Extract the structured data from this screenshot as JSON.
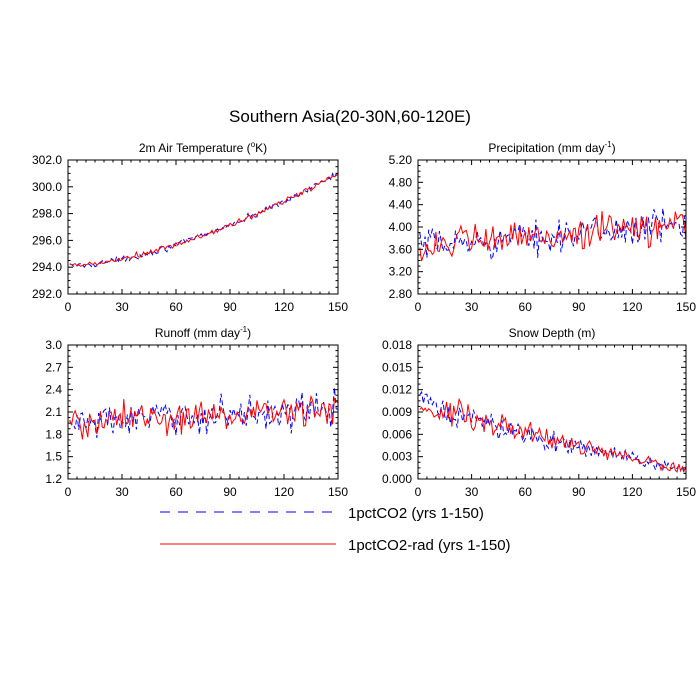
{
  "figure": {
    "title": "Southern Asia(20-30N,60-120E)"
  },
  "legend": {
    "position": "bottom-center",
    "entries": [
      {
        "label": "1pctCO2 (yrs 1-150)",
        "color": "#0000ff",
        "style": "dashed"
      },
      {
        "label": "1pctCO2-rad (yrs 1-150)",
        "color": "#ff0000",
        "style": "solid"
      }
    ]
  },
  "chart_data": [
    {
      "type": "line",
      "title": "2m Air Temperature (°K)",
      "title_parts": [
        "2m Air Temperature (",
        "o",
        "K)"
      ],
      "x_range": [
        0,
        150
      ],
      "x_ticks": [
        0,
        30,
        60,
        90,
        120,
        150
      ],
      "ylim": [
        292.0,
        302.0
      ],
      "y_ticks": [
        "292.0",
        "294.0",
        "296.0",
        "298.0",
        "300.0",
        "302.0"
      ],
      "grid": false,
      "series_model": {
        "kind": "trend",
        "start": 294.1,
        "end": 301.0,
        "curve": 1.6,
        "blue_amp": 0.35,
        "red_amp": 0.35
      }
    },
    {
      "type": "line",
      "title": "Precipitation (mm day-1)",
      "title_parts": [
        "Precipitation (mm day",
        "-1",
        ")"
      ],
      "x_range": [
        0,
        150
      ],
      "x_ticks": [
        0,
        30,
        60,
        90,
        120,
        150
      ],
      "ylim": [
        2.8,
        5.2
      ],
      "y_ticks": [
        "2.80",
        "3.20",
        "3.60",
        "4.00",
        "4.40",
        "4.80",
        "5.20"
      ],
      "grid": false,
      "series_model": {
        "kind": "trend",
        "start": 3.65,
        "end": 4.05,
        "curve": 1.0,
        "blue_amp": 0.42,
        "red_amp": 0.45
      }
    },
    {
      "type": "line",
      "title": "Runoff (mm day-1)",
      "title_parts": [
        "Runoff (mm day",
        "-1",
        ")"
      ],
      "x_range": [
        0,
        150
      ],
      "x_ticks": [
        0,
        30,
        60,
        90,
        120,
        150
      ],
      "ylim": [
        1.2,
        3.0
      ],
      "y_ticks": [
        "1.2",
        "1.5",
        "1.8",
        "2.1",
        "2.4",
        "2.7",
        "3.0"
      ],
      "grid": false,
      "series_model": {
        "kind": "trend",
        "start": 1.95,
        "end": 2.15,
        "curve": 1.0,
        "blue_amp": 0.33,
        "red_amp": 0.35
      }
    },
    {
      "type": "line",
      "title": "Snow Depth (m)",
      "title_parts": [
        "Snow Depth (m)",
        "",
        ""
      ],
      "x_range": [
        0,
        150
      ],
      "x_ticks": [
        0,
        30,
        60,
        90,
        120,
        150
      ],
      "ylim": [
        0.0,
        0.018
      ],
      "y_ticks": [
        "0.000",
        "0.003",
        "0.006",
        "0.009",
        "0.012",
        "0.015",
        "0.018"
      ],
      "grid": false,
      "series_model": {
        "kind": "decay",
        "start": 0.0105,
        "end": 0.0012,
        "curve": 1.0,
        "blue_amp": 0.0022,
        "red_amp": 0.0022
      }
    }
  ]
}
